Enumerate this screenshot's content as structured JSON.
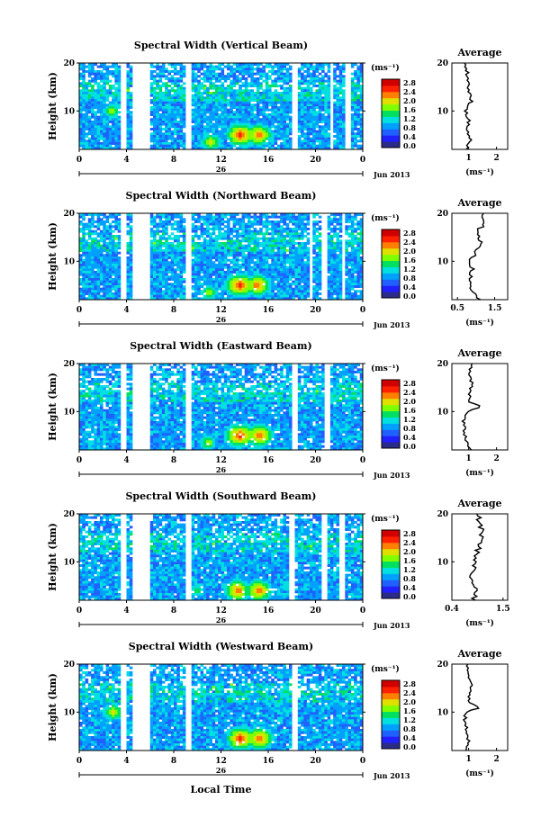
{
  "panels": [
    {
      "title": "Spectral Width (Vertical Beam)",
      "avg_xticks": [
        "1",
        "2"
      ],
      "avg_xrange": [
        0.4,
        2.4
      ]
    },
    {
      "title": "Spectral Width (Northward Beam)",
      "avg_xticks": [
        "0.5",
        "1.5"
      ],
      "avg_xrange": [
        0.35,
        1.85
      ]
    },
    {
      "title": "Spectral Width (Eastward Beam)",
      "avg_xticks": [
        "1",
        "2"
      ],
      "avg_xrange": [
        0.4,
        2.4
      ]
    },
    {
      "title": "Spectral Width (Southward Beam)",
      "avg_xticks": [
        "0.4",
        "1.5"
      ],
      "avg_xrange": [
        0.4,
        1.6
      ]
    },
    {
      "title": "Spectral Width (Westward Beam)",
      "avg_xticks": [
        "1",
        "2"
      ],
      "avg_xrange": [
        0.4,
        2.4
      ]
    }
  ],
  "common": {
    "ylabel": "Height (km)",
    "yticks": [
      "20",
      "10"
    ],
    "xticks": [
      "0",
      "4",
      "8",
      "12",
      "16",
      "20",
      "0"
    ],
    "day_label": "26",
    "month_label": "Jun 2013",
    "avg_title": "Average",
    "unit": "(ms⁻¹)",
    "colorbar_ticks": [
      "2.8",
      "2.4",
      "2.0",
      "1.6",
      "1.2",
      "0.8",
      "0.4",
      "0.0"
    ],
    "xlabel": "Local Time"
  },
  "colors": {
    "scale": [
      "#2b2b8a",
      "#2020ff",
      "#2060ff",
      "#00a0ff",
      "#00e0e0",
      "#00e060",
      "#80ff00",
      "#e0e000",
      "#ff8000",
      "#ff2000",
      "#d00000"
    ]
  },
  "chart_data": [
    {
      "type": "heatmap",
      "title": "Spectral Width (Vertical Beam)",
      "xlabel": "Local Time",
      "ylabel": "Height (km)",
      "xlim": [
        0,
        24
      ],
      "ylim": [
        2,
        20
      ],
      "colorbar_range": [
        0,
        3.0
      ],
      "gaps_hours": [
        [
          3.4,
          3.9
        ],
        [
          4.4,
          6.1
        ],
        [
          9.1,
          9.6
        ],
        [
          17.9,
          18.4
        ],
        [
          21.2,
          21.6
        ],
        [
          22.6,
          23.0
        ]
      ],
      "hotspots": [
        {
          "t": 13.7,
          "h": 5,
          "v": 2.8
        },
        {
          "t": 15.2,
          "h": 5,
          "v": 2.6
        },
        {
          "t": 2.8,
          "h": 10,
          "v": 2.0
        },
        {
          "t": 11.2,
          "h": 3.5,
          "v": 2.2
        }
      ],
      "average_profile": {
        "height": [
          2,
          4,
          6,
          8,
          10,
          12,
          14,
          16,
          18,
          20
        ],
        "width": [
          0.9,
          1.05,
          0.95,
          1.0,
          0.9,
          1.1,
          1.0,
          1.0,
          0.95,
          0.85
        ]
      }
    },
    {
      "type": "heatmap",
      "title": "Spectral Width (Northward Beam)",
      "xlabel": "Local Time",
      "ylabel": "Height (km)",
      "xlim": [
        0,
        24
      ],
      "ylim": [
        2,
        20
      ],
      "colorbar_range": [
        0,
        3.0
      ],
      "gaps_hours": [
        [
          3.4,
          3.9
        ],
        [
          4.4,
          6.1
        ],
        [
          9.1,
          9.6
        ],
        [
          19.4,
          19.8
        ],
        [
          20.6,
          21.0
        ],
        [
          22.2,
          22.6
        ]
      ],
      "hotspots": [
        {
          "t": 13.6,
          "h": 5,
          "v": 2.8
        },
        {
          "t": 15.1,
          "h": 5,
          "v": 2.6
        },
        {
          "t": 11.0,
          "h": 3.5,
          "v": 2.0
        }
      ],
      "average_profile": {
        "height": [
          2,
          4,
          6,
          8,
          10,
          12,
          14,
          16,
          18,
          20
        ],
        "width": [
          1.1,
          0.85,
          0.8,
          0.9,
          0.85,
          1.0,
          1.1,
          1.0,
          1.25,
          1.2
        ]
      }
    },
    {
      "type": "heatmap",
      "title": "Spectral Width (Eastward Beam)",
      "xlabel": "Local Time",
      "ylabel": "Height (km)",
      "xlim": [
        0,
        24
      ],
      "ylim": [
        2,
        20
      ],
      "colorbar_range": [
        0,
        3.0
      ],
      "gaps_hours": [
        [
          3.4,
          3.9
        ],
        [
          4.4,
          6.1
        ],
        [
          9.1,
          9.6
        ],
        [
          18.0,
          18.4
        ],
        [
          20.8,
          21.2
        ]
      ],
      "hotspots": [
        {
          "t": 13.6,
          "h": 5,
          "v": 2.8
        },
        {
          "t": 15.3,
          "h": 5,
          "v": 2.7
        },
        {
          "t": 10.9,
          "h": 3.5,
          "v": 2.0
        }
      ],
      "average_profile": {
        "height": [
          2,
          4,
          6,
          8,
          10,
          11,
          12,
          14,
          16,
          18,
          20
        ],
        "width": [
          1.1,
          0.9,
          0.85,
          0.8,
          0.95,
          1.5,
          1.0,
          1.05,
          1.1,
          1.0,
          1.1
        ]
      }
    },
    {
      "type": "heatmap",
      "title": "Spectral Width (Southward Beam)",
      "xlabel": "Local Time",
      "ylabel": "Height (km)",
      "xlim": [
        0,
        24
      ],
      "ylim": [
        2,
        20
      ],
      "colorbar_range": [
        0,
        3.0
      ],
      "gaps_hours": [
        [
          3.4,
          3.9
        ],
        [
          4.4,
          6.1
        ],
        [
          9.1,
          9.6
        ],
        [
          17.8,
          18.2
        ],
        [
          20.6,
          21.0
        ],
        [
          22.0,
          22.4
        ]
      ],
      "hotspots": [
        {
          "t": 13.4,
          "h": 4,
          "v": 2.6
        },
        {
          "t": 15.2,
          "h": 4,
          "v": 2.6
        },
        {
          "t": 10.0,
          "h": 4,
          "v": 1.8
        }
      ],
      "average_profile": {
        "height": [
          2,
          4,
          6,
          8,
          10,
          12,
          14,
          16,
          18,
          20
        ],
        "width": [
          0.85,
          0.95,
          0.8,
          0.85,
          0.9,
          0.95,
          1.0,
          1.05,
          1.0,
          0.95
        ]
      }
    },
    {
      "type": "heatmap",
      "title": "Spectral Width (Westward Beam)",
      "xlabel": "Local Time",
      "ylabel": "Height (km)",
      "xlim": [
        0,
        24
      ],
      "ylim": [
        2,
        20
      ],
      "colorbar_range": [
        0,
        3.0
      ],
      "gaps_hours": [
        [
          3.4,
          3.9
        ],
        [
          4.4,
          6.1
        ],
        [
          9.1,
          9.6
        ],
        [
          18.0,
          18.4
        ]
      ],
      "hotspots": [
        {
          "t": 13.7,
          "h": 4.5,
          "v": 2.8
        },
        {
          "t": 15.3,
          "h": 4.5,
          "v": 2.7
        },
        {
          "t": 2.9,
          "h": 10,
          "v": 2.2
        }
      ],
      "average_profile": {
        "height": [
          2,
          4,
          6,
          8,
          10,
          11,
          12,
          14,
          16,
          18,
          20
        ],
        "width": [
          0.9,
          1.0,
          0.95,
          0.85,
          0.9,
          1.4,
          1.0,
          1.05,
          1.1,
          1.0,
          0.95
        ]
      }
    }
  ]
}
